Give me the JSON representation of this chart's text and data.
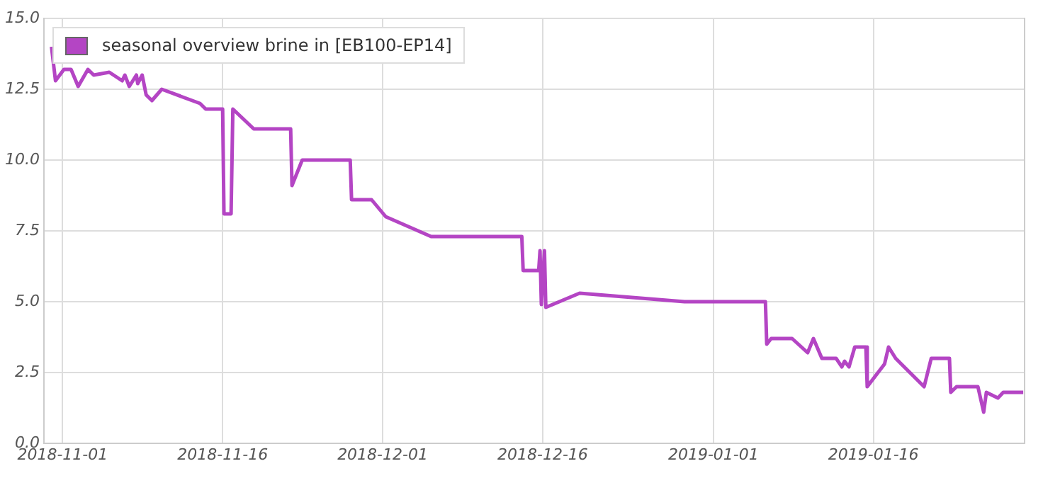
{
  "chart_data": {
    "type": "line",
    "legend": "top left",
    "grid": true,
    "marker": "none",
    "line_style": "solid",
    "xlim": [
      "2018-10-30T06:00",
      "2019-01-30T04:00"
    ],
    "xticks": [
      "2018-11-01",
      "2018-11-16",
      "2018-12-01",
      "2018-12-16",
      "2019-01-01",
      "2019-01-16"
    ],
    "ylim": [
      0,
      15
    ],
    "yticks": [
      {
        "value": 0,
        "label": "0.0"
      },
      {
        "value": 2.5,
        "label": "2.5"
      },
      {
        "value": 5,
        "label": "5.0"
      },
      {
        "value": 7.5,
        "label": "7.5"
      },
      {
        "value": 10,
        "label": "10.0"
      },
      {
        "value": 12.5,
        "label": "12.5"
      },
      {
        "value": 15,
        "label": "15.0"
      }
    ],
    "x": [
      "2018-10-30T23:00",
      "2018-10-31T08:00",
      "2018-11-01T03:00",
      "2018-11-01T19:00",
      "2018-11-02T11:00",
      "2018-11-03T09:00",
      "2018-11-03T22:00",
      "2018-11-05T09:00",
      "2018-11-06T14:00",
      "2018-11-06T20:00",
      "2018-11-07T06:00",
      "2018-11-07T22:00",
      "2018-11-08T01:00",
      "2018-11-08T11:00",
      "2018-11-08T20:00",
      "2018-11-09T09:00",
      "2018-11-10T07:00",
      "2018-11-13T21:00",
      "2018-11-14T10:00",
      "2018-11-16T00:00",
      "2018-11-16T03:00",
      "2018-11-16T19:00",
      "2018-11-16T23:00",
      "2018-11-18T22:00",
      "2018-11-22T09:00",
      "2018-11-22T12:00",
      "2018-11-23T11:00",
      "2018-11-27T23:00",
      "2018-11-28T02:00",
      "2018-11-29T23:00",
      "2018-12-01T07:00",
      "2018-12-05T13:00",
      "2018-12-14T01:00",
      "2018-12-14T04:00",
      "2018-12-15T15:00",
      "2018-12-15T18:00",
      "2018-12-15T21:00",
      "2018-12-16T04:00",
      "2018-12-16T07:00",
      "2018-12-19T11:00",
      "2018-12-29T07:00",
      "2019-01-05T21:00",
      "2019-01-06T00:00",
      "2019-01-06T10:00",
      "2019-01-08T09:00",
      "2019-01-09T20:00",
      "2019-01-10T09:00",
      "2019-01-11T04:00",
      "2019-01-12T12:00",
      "2019-01-13T01:00",
      "2019-01-13T07:00",
      "2019-01-13T17:00",
      "2019-01-14T06:00",
      "2019-01-15T07:00",
      "2019-01-15T10:00",
      "2019-01-17T01:00",
      "2019-01-17T10:00",
      "2019-01-18T02:00",
      "2019-01-20T18:00",
      "2019-01-21T10:00",
      "2019-01-23T03:00",
      "2019-01-23T06:00",
      "2019-01-23T19:00",
      "2019-01-25T19:00",
      "2019-01-26T08:00",
      "2019-01-26T14:00",
      "2019-01-27T16:00",
      "2019-01-28T04:00",
      "2019-01-30T01:00"
    ],
    "series": [
      {
        "name": "seasonal overview brine in [EB100-EP14]",
        "color": "#b445c4",
        "values": [
          14.0,
          12.8,
          13.2,
          13.2,
          12.6,
          13.2,
          13.0,
          13.1,
          12.8,
          13.0,
          12.6,
          13.0,
          12.7,
          13.0,
          12.3,
          12.1,
          12.5,
          12.0,
          11.8,
          11.8,
          8.1,
          8.1,
          11.8,
          11.1,
          11.1,
          9.1,
          10.0,
          10.0,
          8.6,
          8.6,
          8.0,
          7.3,
          7.3,
          6.1,
          6.1,
          6.8,
          4.9,
          6.8,
          4.8,
          5.3,
          5.0,
          5.0,
          3.5,
          3.7,
          3.7,
          3.2,
          3.7,
          3.0,
          3.0,
          2.7,
          2.9,
          2.7,
          3.4,
          3.4,
          2.0,
          2.8,
          3.4,
          3.0,
          2.0,
          3.0,
          3.0,
          1.8,
          2.0,
          2.0,
          1.1,
          1.8,
          1.6,
          1.8,
          1.8
        ]
      }
    ]
  }
}
